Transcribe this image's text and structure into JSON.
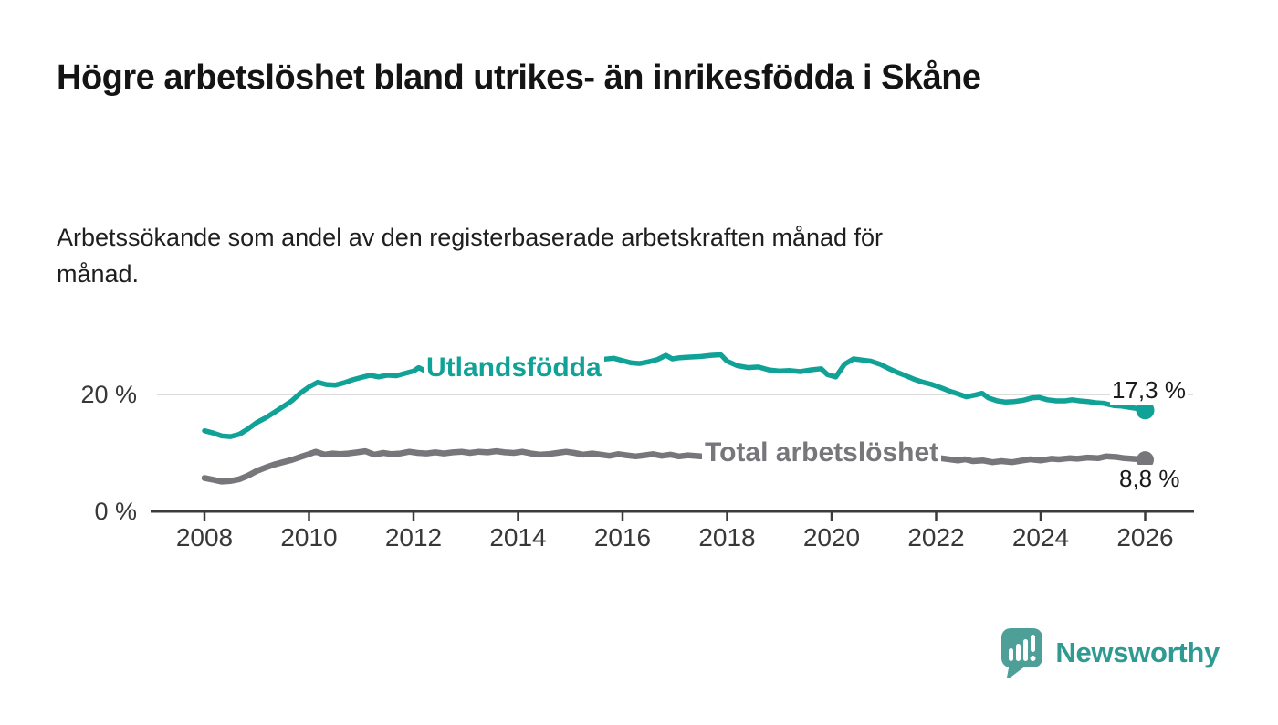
{
  "header": {
    "title": "Högre arbetslöshet bland utrikes- än inrikesfödda i Skåne",
    "subtitle": "Arbetssökande som andel av den registerbaserade arbetskraften månad för månad."
  },
  "chart_data": {
    "type": "line",
    "title": "Högre arbetslöshet bland utrikes- än inrikesfödda i Skåne",
    "subtitle": "Arbetssökande som andel av den registerbaserade arbetskraften månad för månad.",
    "x_axis": {
      "tick_years": [
        2008,
        2010,
        2012,
        2014,
        2016,
        2018,
        2020,
        2022,
        2024,
        2026
      ],
      "range": [
        2008,
        2026.9
      ]
    },
    "y_axis": {
      "unit": "%",
      "range": [
        0,
        28
      ],
      "ticks": [
        {
          "value": 0,
          "label": "0 %"
        },
        {
          "value": 20,
          "label": "20 %"
        }
      ],
      "gridlines_at": [
        20
      ]
    },
    "legend_position": "inline-labels",
    "series": [
      {
        "name": "Utlandsfödda",
        "color": "#10a296",
        "end_value": 17.3,
        "end_label": "17,3 %",
        "points": [
          [
            2008.0,
            13.8
          ],
          [
            2008.17,
            13.4
          ],
          [
            2008.33,
            12.9
          ],
          [
            2008.5,
            12.8
          ],
          [
            2008.67,
            13.2
          ],
          [
            2008.83,
            14.1
          ],
          [
            2009.0,
            15.2
          ],
          [
            2009.17,
            16.0
          ],
          [
            2009.33,
            16.9
          ],
          [
            2009.5,
            17.9
          ],
          [
            2009.67,
            18.9
          ],
          [
            2009.83,
            20.2
          ],
          [
            2010.0,
            21.3
          ],
          [
            2010.17,
            22.1
          ],
          [
            2010.33,
            21.7
          ],
          [
            2010.5,
            21.6
          ],
          [
            2010.67,
            22.0
          ],
          [
            2010.83,
            22.5
          ],
          [
            2011.0,
            22.9
          ],
          [
            2011.17,
            23.3
          ],
          [
            2011.33,
            23.0
          ],
          [
            2011.5,
            23.3
          ],
          [
            2011.67,
            23.2
          ],
          [
            2011.83,
            23.6
          ],
          [
            2012.0,
            24.0
          ],
          [
            2012.1,
            24.6
          ],
          [
            2012.25,
            23.9
          ],
          [
            2012.6,
            24.3
          ],
          [
            2013.0,
            24.6
          ],
          [
            2013.5,
            25.0
          ],
          [
            2014.0,
            25.3
          ],
          [
            2014.5,
            25.5
          ],
          [
            2015.0,
            25.7
          ],
          [
            2015.5,
            25.9
          ],
          [
            2015.83,
            26.2
          ],
          [
            2016.0,
            25.8
          ],
          [
            2016.17,
            25.4
          ],
          [
            2016.33,
            25.3
          ],
          [
            2016.5,
            25.6
          ],
          [
            2016.67,
            26.0
          ],
          [
            2016.83,
            26.7
          ],
          [
            2016.95,
            26.1
          ],
          [
            2017.1,
            26.3
          ],
          [
            2017.3,
            26.4
          ],
          [
            2017.5,
            26.5
          ],
          [
            2017.7,
            26.7
          ],
          [
            2017.88,
            26.8
          ],
          [
            2018.0,
            25.7
          ],
          [
            2018.2,
            24.9
          ],
          [
            2018.4,
            24.6
          ],
          [
            2018.6,
            24.7
          ],
          [
            2018.8,
            24.2
          ],
          [
            2019.0,
            24.0
          ],
          [
            2019.2,
            24.1
          ],
          [
            2019.4,
            23.9
          ],
          [
            2019.6,
            24.2
          ],
          [
            2019.8,
            24.4
          ],
          [
            2019.92,
            23.4
          ],
          [
            2020.08,
            23.0
          ],
          [
            2020.25,
            25.2
          ],
          [
            2020.42,
            26.1
          ],
          [
            2020.58,
            25.9
          ],
          [
            2020.75,
            25.7
          ],
          [
            2020.92,
            25.2
          ],
          [
            2021.08,
            24.5
          ],
          [
            2021.25,
            23.8
          ],
          [
            2021.42,
            23.2
          ],
          [
            2021.58,
            22.6
          ],
          [
            2021.75,
            22.1
          ],
          [
            2021.92,
            21.7
          ],
          [
            2022.08,
            21.2
          ],
          [
            2022.25,
            20.6
          ],
          [
            2022.42,
            20.1
          ],
          [
            2022.58,
            19.6
          ],
          [
            2022.75,
            19.9
          ],
          [
            2022.88,
            20.2
          ],
          [
            2023.0,
            19.4
          ],
          [
            2023.17,
            18.9
          ],
          [
            2023.33,
            18.7
          ],
          [
            2023.5,
            18.8
          ],
          [
            2023.67,
            19.0
          ],
          [
            2023.83,
            19.4
          ],
          [
            2023.97,
            19.5
          ],
          [
            2024.13,
            19.1
          ],
          [
            2024.3,
            18.9
          ],
          [
            2024.47,
            18.9
          ],
          [
            2024.6,
            19.1
          ],
          [
            2024.75,
            18.9
          ],
          [
            2024.9,
            18.8
          ],
          [
            2025.05,
            18.6
          ],
          [
            2025.2,
            18.5
          ],
          [
            2025.4,
            18.1
          ],
          [
            2025.55,
            18.0
          ],
          [
            2025.7,
            17.8
          ],
          [
            2025.85,
            17.6
          ],
          [
            2026.0,
            17.3
          ]
        ]
      },
      {
        "name": "Total arbetslöshet",
        "color": "#76767b",
        "end_value": 8.8,
        "end_label": "8,8 %",
        "points": [
          [
            2008.0,
            5.7
          ],
          [
            2008.17,
            5.4
          ],
          [
            2008.33,
            5.1
          ],
          [
            2008.5,
            5.2
          ],
          [
            2008.67,
            5.5
          ],
          [
            2008.83,
            6.1
          ],
          [
            2009.0,
            6.9
          ],
          [
            2009.17,
            7.5
          ],
          [
            2009.33,
            8.0
          ],
          [
            2009.5,
            8.4
          ],
          [
            2009.67,
            8.8
          ],
          [
            2009.83,
            9.3
          ],
          [
            2010.0,
            9.8
          ],
          [
            2010.13,
            10.2
          ],
          [
            2010.3,
            9.7
          ],
          [
            2010.45,
            9.9
          ],
          [
            2010.6,
            9.8
          ],
          [
            2010.75,
            9.9
          ],
          [
            2010.92,
            10.1
          ],
          [
            2011.08,
            10.3
          ],
          [
            2011.25,
            9.7
          ],
          [
            2011.42,
            10.0
          ],
          [
            2011.58,
            9.8
          ],
          [
            2011.75,
            9.9
          ],
          [
            2011.92,
            10.2
          ],
          [
            2012.08,
            10.0
          ],
          [
            2012.25,
            9.9
          ],
          [
            2012.42,
            10.1
          ],
          [
            2012.58,
            9.9
          ],
          [
            2012.75,
            10.1
          ],
          [
            2012.92,
            10.2
          ],
          [
            2013.08,
            10.0
          ],
          [
            2013.25,
            10.2
          ],
          [
            2013.42,
            10.1
          ],
          [
            2013.58,
            10.3
          ],
          [
            2013.75,
            10.1
          ],
          [
            2013.92,
            10.0
          ],
          [
            2014.08,
            10.2
          ],
          [
            2014.25,
            9.9
          ],
          [
            2014.42,
            9.7
          ],
          [
            2014.58,
            9.8
          ],
          [
            2014.75,
            10.0
          ],
          [
            2014.92,
            10.2
          ],
          [
            2015.08,
            10.0
          ],
          [
            2015.25,
            9.7
          ],
          [
            2015.42,
            9.9
          ],
          [
            2015.58,
            9.7
          ],
          [
            2015.75,
            9.5
          ],
          [
            2015.92,
            9.8
          ],
          [
            2016.08,
            9.6
          ],
          [
            2016.25,
            9.4
          ],
          [
            2016.42,
            9.6
          ],
          [
            2016.58,
            9.8
          ],
          [
            2016.75,
            9.5
          ],
          [
            2016.92,
            9.7
          ],
          [
            2017.08,
            9.4
          ],
          [
            2017.25,
            9.6
          ],
          [
            2017.5,
            9.4
          ],
          [
            2018.0,
            9.3
          ],
          [
            2018.5,
            9.1
          ],
          [
            2019.0,
            9.2
          ],
          [
            2019.5,
            9.3
          ],
          [
            2020.0,
            9.6
          ],
          [
            2020.4,
            11.2
          ],
          [
            2021.0,
            10.6
          ],
          [
            2021.5,
            9.8
          ],
          [
            2022.0,
            9.2
          ],
          [
            2022.42,
            8.7
          ],
          [
            2022.55,
            8.9
          ],
          [
            2022.7,
            8.6
          ],
          [
            2022.9,
            8.7
          ],
          [
            2023.08,
            8.4
          ],
          [
            2023.25,
            8.6
          ],
          [
            2023.45,
            8.4
          ],
          [
            2023.65,
            8.7
          ],
          [
            2023.8,
            8.9
          ],
          [
            2024.0,
            8.7
          ],
          [
            2024.2,
            9.0
          ],
          [
            2024.35,
            8.9
          ],
          [
            2024.55,
            9.1
          ],
          [
            2024.7,
            9.0
          ],
          [
            2024.9,
            9.2
          ],
          [
            2025.1,
            9.1
          ],
          [
            2025.25,
            9.4
          ],
          [
            2025.45,
            9.3
          ],
          [
            2025.6,
            9.1
          ],
          [
            2025.75,
            9.0
          ],
          [
            2025.9,
            8.9
          ],
          [
            2026.0,
            8.8
          ]
        ]
      }
    ]
  },
  "footer": {
    "brand": "Newsworthy",
    "logo_color": "#4d9f98",
    "wordmark_color": "#2f9a92"
  }
}
